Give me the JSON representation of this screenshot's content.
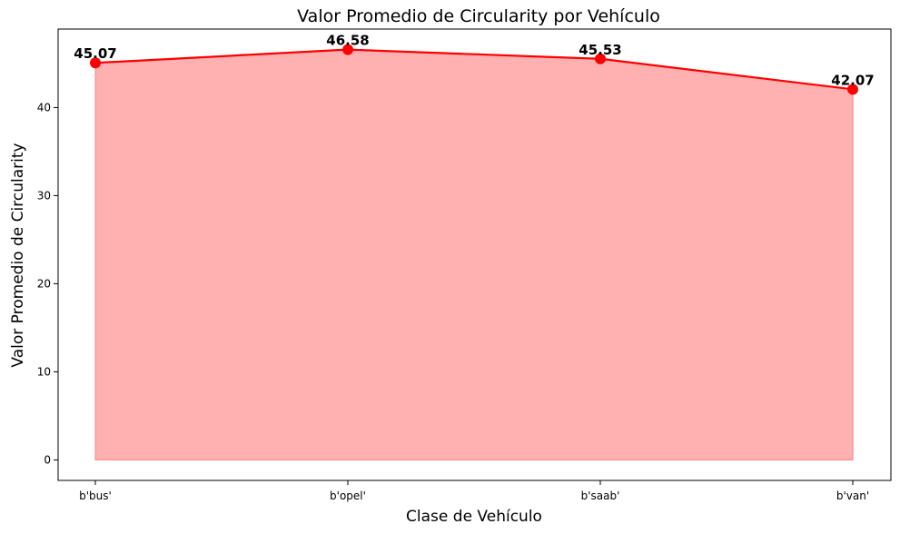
{
  "chart_data": {
    "type": "area",
    "title": "Valor Promedio de Circularity por Vehículo",
    "xlabel": "Clase de Vehículo",
    "ylabel": "Valor Promedio de Circularity",
    "categories": [
      "b'bus'",
      "b'opel'",
      "b'saab'",
      "b'van'"
    ],
    "values": [
      45.07,
      46.58,
      45.53,
      42.07
    ],
    "data_labels": [
      "45.07",
      "46.58",
      "45.53",
      "42.07"
    ],
    "yticks": [
      0,
      10,
      20,
      30,
      40
    ],
    "ylim": [
      -2.33,
      48.91
    ],
    "grid": false,
    "legend": "none",
    "colors": {
      "line": "#ff0000",
      "fill": "#ffb0b0",
      "fill_edge": "#ff7f7f"
    }
  }
}
